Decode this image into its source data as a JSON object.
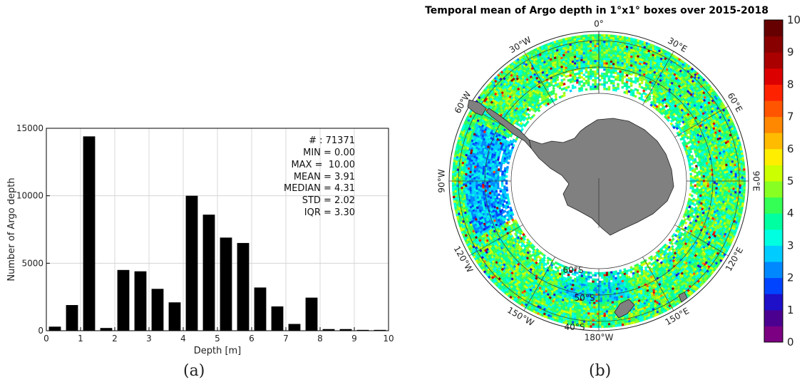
{
  "chart_data": [
    {
      "type": "bar",
      "xlabel": "Depth [m]",
      "ylabel": "Number of Argo depth",
      "xlim": [
        0,
        10
      ],
      "ylim": [
        0,
        15000
      ],
      "xticks": [
        "0",
        "1",
        "2",
        "3",
        "4",
        "5",
        "6",
        "7",
        "8",
        "9",
        "10"
      ],
      "yticks": [
        "0",
        "5000",
        "10000",
        "15000"
      ],
      "grid": true,
      "bins": [
        0.25,
        0.75,
        1.25,
        1.75,
        2.25,
        2.75,
        3.25,
        3.75,
        4.25,
        4.75,
        5.25,
        5.75,
        6.25,
        6.75,
        7.25,
        7.75,
        8.25,
        8.75,
        9.25,
        9.75
      ],
      "values": [
        300,
        1900,
        14400,
        200,
        4500,
        4400,
        3100,
        2100,
        10000,
        8600,
        6900,
        6500,
        3200,
        1800,
        500,
        2450,
        120,
        120,
        60,
        60
      ],
      "stats": [
        "# : 71371",
        "MIN = 0.00",
        "MAX =  10.00",
        "MEAN = 3.91",
        "MEDIAN = 4.31",
        "STD = 2.02",
        "IQR = 3.30"
      ],
      "caption": "(a)"
    },
    {
      "type": "heatmap",
      "title": "Temporal mean of Argo depth in 1°x1° boxes over 2015-2018",
      "projection": "south-polar-stereographic",
      "lon_labels": [
        "0°",
        "30°E",
        "60°E",
        "90°E",
        "120°E",
        "150°E",
        "180°W",
        "150°W",
        "120°W",
        "90°W",
        "60°W",
        "30°W"
      ],
      "lat_labels": [
        "60°S",
        "50°S",
        "40°S"
      ],
      "colorbar_range": [
        0,
        10
      ],
      "colorbar_ticks": [
        "0",
        "1",
        "2",
        "3",
        "4",
        "5",
        "6",
        "7",
        "8",
        "9",
        "10"
      ],
      "colormap": [
        "#7b0082",
        "#4b0090",
        "#1e10c8",
        "#0044ff",
        "#0088ff",
        "#00ccff",
        "#00ffe0",
        "#00ffa0",
        "#33ff55",
        "#88ff22",
        "#ccff00",
        "#ffee00",
        "#ffbb00",
        "#ff8800",
        "#ff5500",
        "#ff2200",
        "#dd0000",
        "#aa0000",
        "#880000",
        "#660000"
      ],
      "caption": "(b)"
    }
  ]
}
